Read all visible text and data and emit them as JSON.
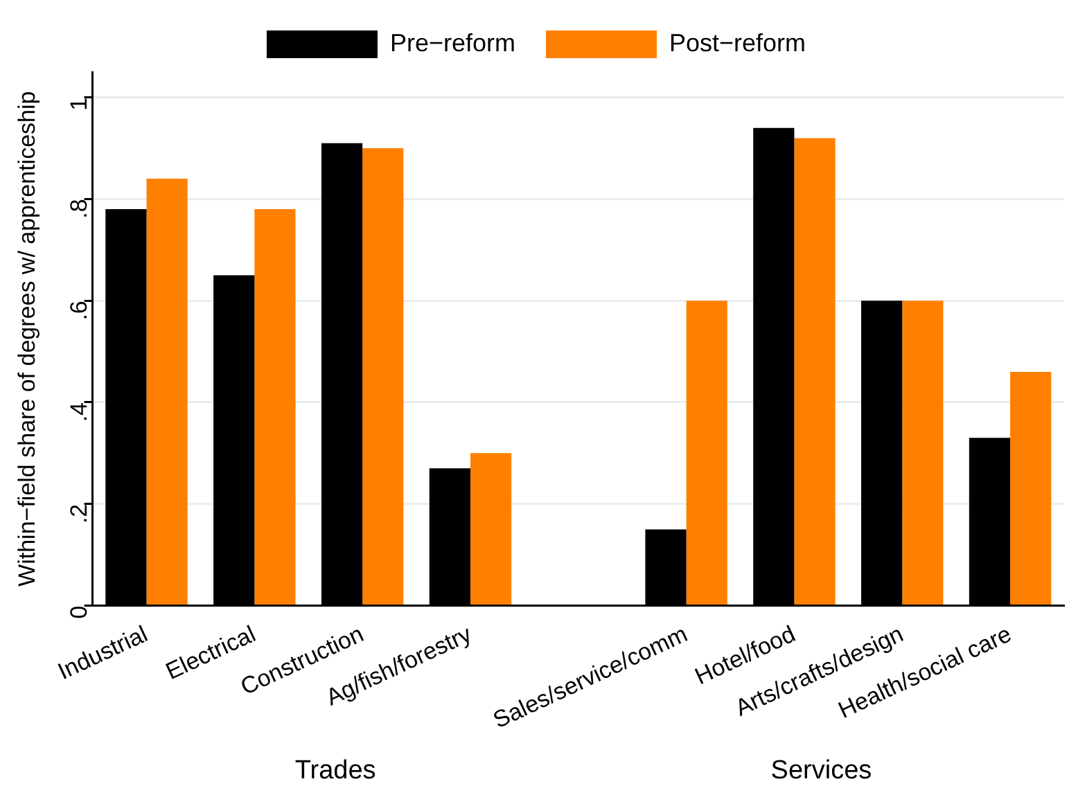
{
  "chart_data": {
    "type": "bar",
    "ylabel": "Within−field share of degrees w/ apprenticeship",
    "categories": [
      "Industrial",
      "Electrical",
      "Construction",
      "Ag/fish/forestry",
      null,
      "Sales/service/comm",
      "Hotel/food",
      "Arts/crafts/design",
      "Health/social care"
    ],
    "series": [
      {
        "name": "Pre−reform",
        "color": "#000000",
        "values": [
          0.78,
          0.65,
          0.91,
          0.27,
          null,
          0.15,
          0.94,
          0.6,
          0.33
        ]
      },
      {
        "name": "Post−reform",
        "color": "#ff8000",
        "values": [
          0.84,
          0.78,
          0.9,
          0.3,
          null,
          0.6,
          0.92,
          0.6,
          0.46
        ]
      }
    ],
    "ylim": [
      0,
      1.05
    ],
    "yticks": [
      0,
      {
        "value": 0.2,
        "label": ".2"
      },
      {
        "value": 0.4,
        "label": ".4"
      },
      {
        "value": 0.6,
        "label": ".6"
      },
      {
        "value": 0.8,
        "label": ".8"
      },
      1
    ],
    "grid": "y",
    "legend": "top",
    "annotations": [
      "Trades",
      "Services"
    ]
  }
}
